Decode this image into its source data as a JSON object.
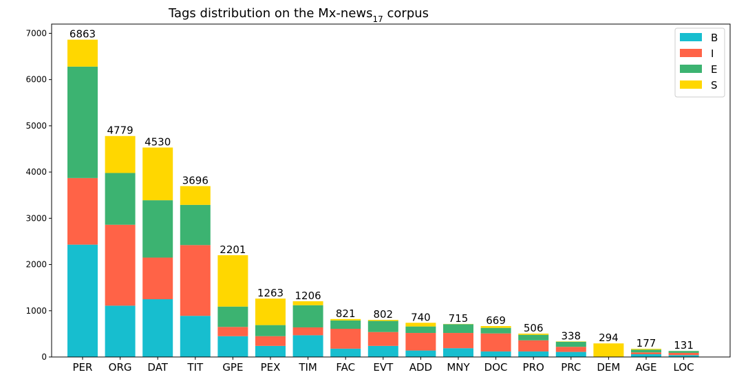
{
  "chart_data": {
    "type": "bar",
    "stacked": true,
    "title": "Tags distribution on the Mx-news",
    "title_subscript": "17",
    "title_suffix": " corpus",
    "xlabel": "",
    "ylabel": "",
    "ylim": [
      0,
      7200
    ],
    "yticks": [
      0,
      1000,
      2000,
      3000,
      4000,
      5000,
      6000,
      7000
    ],
    "grid": false,
    "legend_position": "top-right",
    "categories": [
      "PER",
      "ORG",
      "DAT",
      "TIT",
      "GPE",
      "PEX",
      "TIM",
      "FAC",
      "EVT",
      "ADD",
      "MNY",
      "DOC",
      "PRO",
      "PRC",
      "DEM",
      "AGE",
      "LOC"
    ],
    "totals": [
      6863,
      4779,
      4530,
      3696,
      2201,
      1263,
      1206,
      821,
      802,
      740,
      715,
      669,
      506,
      338,
      294,
      177,
      131
    ],
    "series": [
      {
        "name": "B",
        "color": "#17becf",
        "values": [
          2430,
          1110,
          1250,
          890,
          450,
          240,
          470,
          180,
          240,
          140,
          190,
          120,
          120,
          110,
          0,
          60,
          40
        ]
      },
      {
        "name": "I",
        "color": "#ff6347",
        "values": [
          1440,
          1750,
          900,
          1530,
          200,
          210,
          170,
          430,
          300,
          380,
          330,
          390,
          240,
          110,
          0,
          40,
          50
        ]
      },
      {
        "name": "E",
        "color": "#3cb371",
        "values": [
          2410,
          1120,
          1240,
          870,
          440,
          240,
          480,
          180,
          240,
          140,
          190,
          120,
          120,
          110,
          0,
          60,
          40
        ]
      },
      {
        "name": "S",
        "color": "#ffd700",
        "values": [
          583,
          799,
          1140,
          406,
          1111,
          573,
          86,
          31,
          22,
          80,
          5,
          39,
          26,
          8,
          294,
          17,
          1
        ]
      }
    ]
  }
}
